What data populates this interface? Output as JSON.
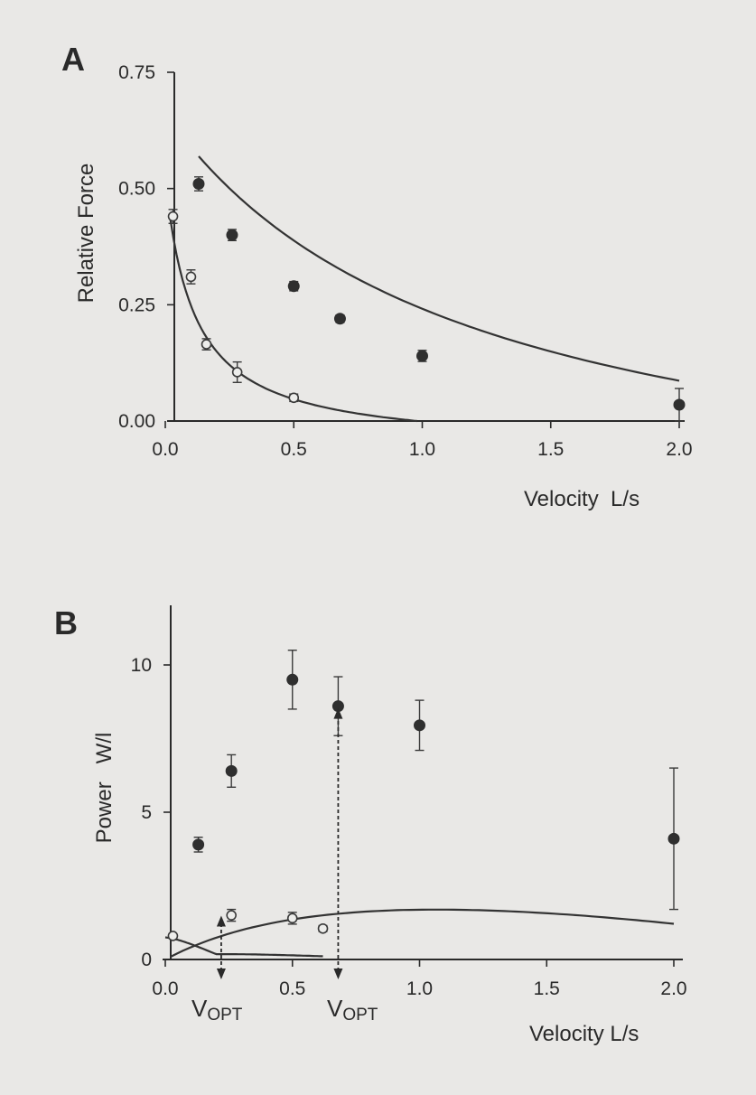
{
  "chart_data": [
    {
      "panel": "A",
      "type": "scatter",
      "xlabel": "Velocity  L/s",
      "ylabel": "Relative Force",
      "xlim": [
        0,
        2.0
      ],
      "ylim": [
        0,
        0.75
      ],
      "xticks": [
        "0.0",
        "0.5",
        "1.0",
        "1.5",
        "2.0"
      ],
      "yticks": [
        "0.00",
        "0.25",
        "0.50",
        "0.75"
      ],
      "series": [
        {
          "marker": "filled",
          "x": [
            0.13,
            0.26,
            0.5,
            0.68,
            1.0,
            2.0
          ],
          "y": [
            0.51,
            0.4,
            0.29,
            0.22,
            0.14,
            0.035
          ],
          "err": [
            0.015,
            0.012,
            0.01,
            0.008,
            0.012,
            0.035
          ],
          "fit": true
        },
        {
          "marker": "open",
          "x": [
            0.03,
            0.1,
            0.16,
            0.28,
            0.5
          ],
          "y": [
            0.44,
            0.31,
            0.165,
            0.105,
            0.05
          ],
          "err": [
            0.015,
            0.015,
            0.012,
            0.022,
            0.008
          ],
          "fit": true
        }
      ]
    },
    {
      "panel": "B",
      "type": "scatter",
      "xlabel": "Velocity L/s",
      "ylabel": "Power   W/l",
      "xlim": [
        0,
        2.0
      ],
      "ylim": [
        0,
        10
      ],
      "xticks": [
        "0.0",
        "0.5",
        "1.0",
        "1.5",
        "2.0"
      ],
      "yticks": [
        "0",
        "5",
        "10"
      ],
      "series": [
        {
          "marker": "filled",
          "x": [
            0.13,
            0.26,
            0.5,
            0.68,
            1.0,
            2.0
          ],
          "y": [
            3.9,
            6.4,
            9.5,
            8.6,
            7.95,
            4.1
          ],
          "err": [
            0.25,
            0.55,
            1.0,
            1.0,
            0.85,
            2.4
          ],
          "fit": true
        },
        {
          "marker": "open",
          "x": [
            0.03,
            0.26,
            0.5,
            0.62
          ],
          "y": [
            0.8,
            1.5,
            1.4,
            1.05
          ],
          "err": [
            0.05,
            0.2,
            0.2,
            0.1
          ],
          "fit": true
        }
      ],
      "annotations": [
        {
          "label": "V",
          "sub": "OPT",
          "x": 0.22
        },
        {
          "label": "V",
          "sub": "OPT",
          "x": 0.68
        }
      ]
    }
  ]
}
